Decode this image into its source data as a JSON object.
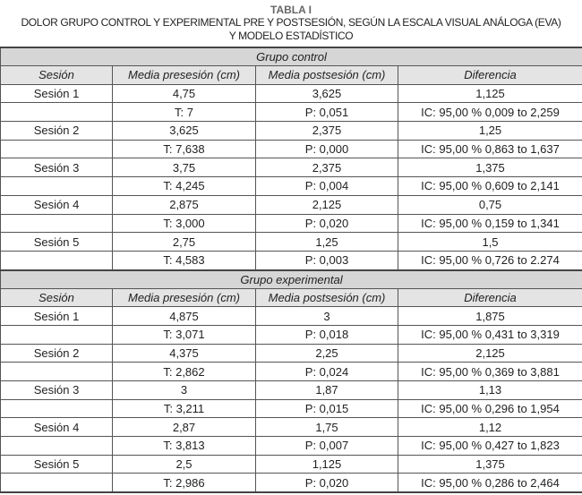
{
  "title": "TABLA I",
  "subtitle_line1": "DOLOR GRUPO CONTROL Y EXPERIMENTAL PRE Y POSTSESIÓN, SEGÚN LA ESCALA VISUAL ANÁLOGA (EVA)",
  "subtitle_line2": "Y MODELO ESTADÍSTICO",
  "columns": [
    "Sesión",
    "Media presesión (cm)",
    "Media postsesión (cm)",
    "Diferencia"
  ],
  "groups": [
    {
      "name": "Grupo control",
      "sessions": [
        {
          "label": "Sesión 1",
          "pre": "4,75",
          "post": "3,625",
          "diff": "1,125",
          "t": "T: 7",
          "p": "P: 0,051",
          "ic": "IC: 95,00 % 0,009 to 2,259"
        },
        {
          "label": "Sesión 2",
          "pre": "3,625",
          "post": "2,375",
          "diff": "1,25",
          "t": "T: 7,638",
          "p": "P: 0,000",
          "ic": "IC: 95,00 % 0,863 to 1,637"
        },
        {
          "label": "Sesión 3",
          "pre": "3,75",
          "post": "2,375",
          "diff": "1,375",
          "t": "T: 4,245",
          "p": "P: 0,004",
          "ic": "IC: 95,00 % 0,609 to 2,141"
        },
        {
          "label": "Sesión 4",
          "pre": "2,875",
          "post": "2,125",
          "diff": "0,75",
          "t": "T: 3,000",
          "p": "P: 0,020",
          "ic": "IC: 95,00 % 0,159 to 1,341"
        },
        {
          "label": "Sesión 5",
          "pre": "2,75",
          "post": "1,25",
          "diff": "1,5",
          "t": "T: 4,583",
          "p": "P: 0,003",
          "ic": "IC: 95,00 % 0,726 to 2.274"
        }
      ]
    },
    {
      "name": "Grupo experimental",
      "sessions": [
        {
          "label": "Sesión 1",
          "pre": "4,875",
          "post": "3",
          "diff": "1,875",
          "t": "T: 3,071",
          "p": "P: 0,018",
          "ic": "IC: 95,00 % 0,431 to 3,319"
        },
        {
          "label": "Sesión 2",
          "pre": "4,375",
          "post": "2,25",
          "diff": "2,125",
          "t": "T: 2,862",
          "p": "P: 0,024",
          "ic": "IC: 95,00 % 0,369 to 3,881"
        },
        {
          "label": "Sesión 3",
          "pre": "3",
          "post": "1,87",
          "diff": "1,13",
          "t": "T: 3,211",
          "p": "P: 0,015",
          "ic": "IC: 95,00 % 0,296 to 1,954"
        },
        {
          "label": "Sesión 4",
          "pre": "2,87",
          "post": "1,75",
          "diff": "1,12",
          "t": "T: 3,813",
          "p": "P: 0,007",
          "ic": "IC: 95,00 % 0,427 to 1,823"
        },
        {
          "label": "Sesión 5",
          "pre": "2,5",
          "post": "1,125",
          "diff": "1,375",
          "t": "T: 2,986",
          "p": "P: 0,020",
          "ic": "IC: 95,00 % 0,286 to 2,464"
        }
      ]
    }
  ]
}
